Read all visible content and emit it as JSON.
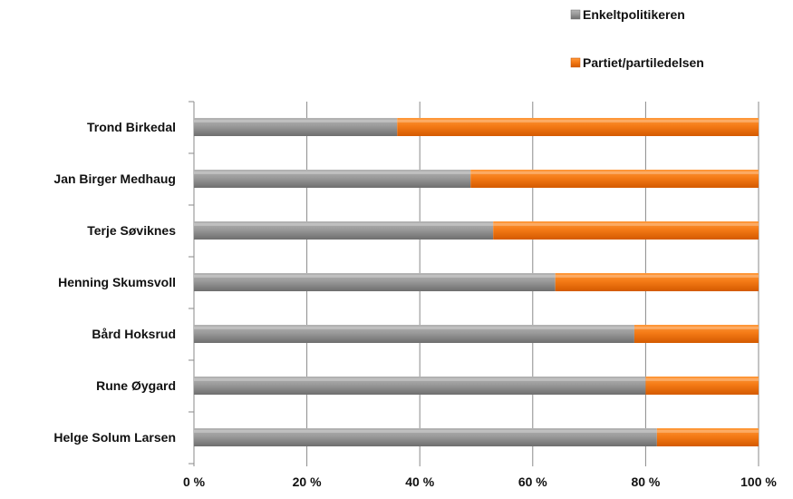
{
  "chart_data": {
    "type": "bar",
    "orientation": "horizontal",
    "stacked": "percent",
    "categories": [
      "Trond Birkedal",
      "Jan Birger Medhaug",
      "Terje Søviknes",
      "Henning Skumsvoll",
      "Bård Hoksrud",
      "Rune Øygard",
      "Helge Solum Larsen"
    ],
    "series": [
      {
        "name": "Enkeltpolitikeren",
        "color": "#8c8c8c",
        "values": [
          36,
          49,
          53,
          64,
          78,
          80,
          82
        ]
      },
      {
        "name": "Partiet/partiledelsen",
        "color": "#f07010",
        "values": [
          64,
          51,
          47,
          36,
          22,
          20,
          18
        ]
      }
    ],
    "x_ticks": [
      "0 %",
      "20 %",
      "40 %",
      "60 %",
      "80 %",
      "100 %"
    ],
    "xlim": [
      0,
      100
    ],
    "grid": "vertical",
    "legend": {
      "placement": "top-right"
    }
  }
}
